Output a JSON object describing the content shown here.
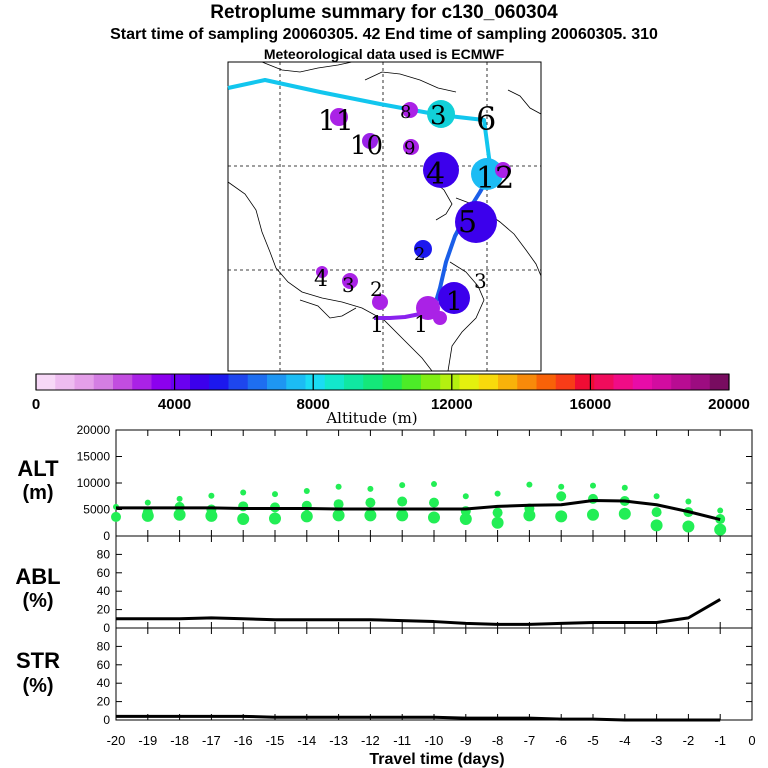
{
  "header": {
    "title": "Retroplume summary for c130_060304",
    "subtitle": "Start time of sampling 20060305.   42     End time of sampling 20060305.   310",
    "met_line": "Meteorological data used is ECMWF"
  },
  "colors": {
    "colorbar": [
      "#f7d8f7",
      "#eebcf0",
      "#e49fe9",
      "#d47ee3",
      "#c24de0",
      "#aa22e6",
      "#8c00ee",
      "#6a00f0",
      "#3c00ec",
      "#1c18ee",
      "#1e46ee",
      "#1e6ef0",
      "#1e96f2",
      "#1cbcf4",
      "#1adcf4",
      "#12e8cc",
      "#10e8a2",
      "#14e87a",
      "#22ea50",
      "#4cec28",
      "#80ee14",
      "#b4f010",
      "#e4f00e",
      "#f8da0c",
      "#f8b20a",
      "#f88a0a",
      "#f86208",
      "#f83c18",
      "#f00c34",
      "#f00c5c",
      "#f00c86",
      "#e80ca8",
      "#d20ca0",
      "#b80c92",
      "#9c0c80",
      "#780c60"
    ],
    "alt_dots": "#22ee55",
    "line": "#000000"
  },
  "map": {
    "tracks": [
      {
        "name": "track-cyan",
        "color": "#12c6ee"
      },
      {
        "name": "track-blue",
        "color": "#1a5ee8"
      },
      {
        "name": "track-purple",
        "color": "#8a22ee"
      }
    ],
    "day_labels": [
      "11",
      "10",
      "9",
      "8",
      "3",
      "4",
      "6",
      "12",
      "5",
      "2",
      "4",
      "3",
      "3",
      "2",
      "1",
      "1",
      "1"
    ],
    "markers": [
      {
        "color": "#aa22e6"
      },
      {
        "color": "#9a22e8"
      },
      {
        "color": "#aa22e6"
      },
      {
        "color": "#aa22e6"
      },
      {
        "color": "#12d0d8"
      },
      {
        "color": "#3c00ec"
      },
      {
        "color": "#1cbcf4"
      },
      {
        "color": "#aa22e6"
      },
      {
        "color": "#3c00ec"
      },
      {
        "color": "#1c18ee"
      },
      {
        "color": "#aa22e6"
      },
      {
        "color": "#aa22e6"
      },
      {
        "color": "#aa22e6"
      },
      {
        "color": "#aa22e6"
      },
      {
        "color": "#3c00ec"
      },
      {
        "color": "#aa22e6"
      }
    ]
  },
  "colorbar_axis": {
    "ticks": [
      "0",
      "4000",
      "8000",
      "12000",
      "16000",
      "20000"
    ],
    "label": "Altitude (m)"
  },
  "chart_data": [
    {
      "type": "line",
      "title": "ALT (m)",
      "ylabel_1": "ALT",
      "ylabel_2": "(m)",
      "ylim": [
        0,
        20000
      ],
      "yticks": [
        "0",
        "5000",
        "10000",
        "15000",
        "20000"
      ],
      "x": [
        -20,
        -19,
        -18,
        -17,
        -16,
        -15,
        -14,
        -13,
        -12,
        -11,
        -10,
        -9,
        -8,
        -7,
        -6,
        -5,
        -4,
        -3,
        -2,
        -1
      ],
      "values": [
        5300,
        5300,
        5300,
        5300,
        5200,
        5200,
        5200,
        5100,
        5100,
        5100,
        5100,
        5100,
        5600,
        5800,
        5900,
        6700,
        6600,
        5900,
        4600,
        3100
      ],
      "dots": [
        {
          "x": -20,
          "alts": [
            5500,
            3600
          ]
        },
        {
          "x": -19,
          "alts": [
            6300,
            4500,
            3800
          ]
        },
        {
          "x": -18,
          "alts": [
            7000,
            5500,
            4000
          ]
        },
        {
          "x": -17,
          "alts": [
            7600,
            5000,
            3800
          ]
        },
        {
          "x": -16,
          "alts": [
            8200,
            5600,
            3200
          ]
        },
        {
          "x": -15,
          "alts": [
            7900,
            5400,
            3300
          ]
        },
        {
          "x": -14,
          "alts": [
            8500,
            5700,
            3700
          ]
        },
        {
          "x": -13,
          "alts": [
            9300,
            6000,
            3900
          ]
        },
        {
          "x": -12,
          "alts": [
            8900,
            6300,
            3900
          ]
        },
        {
          "x": -11,
          "alts": [
            9600,
            6500,
            3900
          ]
        },
        {
          "x": -10,
          "alts": [
            9800,
            6300,
            3500
          ]
        },
        {
          "x": -9,
          "alts": [
            7500,
            4700,
            3200
          ]
        },
        {
          "x": -8,
          "alts": [
            8000,
            4400,
            2500
          ]
        },
        {
          "x": -7,
          "alts": [
            9700,
            5200,
            3900
          ]
        },
        {
          "x": -6,
          "alts": [
            9300,
            7500,
            3700
          ]
        },
        {
          "x": -5,
          "alts": [
            9500,
            7000,
            4000
          ]
        },
        {
          "x": -4,
          "alts": [
            9100,
            6600,
            4200
          ]
        },
        {
          "x": -3,
          "alts": [
            7500,
            4500,
            2000
          ]
        },
        {
          "x": -2,
          "alts": [
            6500,
            4500,
            1800
          ]
        },
        {
          "x": -1,
          "alts": [
            4800,
            3200,
            1200
          ]
        }
      ]
    },
    {
      "type": "line",
      "title": "ABL (%)",
      "ylabel_1": "ABL",
      "ylabel_2": "(%)",
      "ylim": [
        0,
        100
      ],
      "yticks": [
        "0",
        "20",
        "40",
        "60",
        "80"
      ],
      "x": [
        -20,
        -19,
        -18,
        -17,
        -16,
        -15,
        -14,
        -13,
        -12,
        -11,
        -10,
        -9,
        -8,
        -7,
        -6,
        -5,
        -4,
        -3,
        -2,
        -1
      ],
      "values": [
        10,
        10,
        10,
        11,
        10,
        9,
        9,
        9,
        9,
        8,
        7,
        5,
        4,
        4,
        5,
        6,
        6,
        6,
        11,
        31
      ]
    },
    {
      "type": "line",
      "title": "STR (%)",
      "ylabel_1": "STR",
      "ylabel_2": "(%)",
      "ylim": [
        0,
        100
      ],
      "yticks": [
        "0",
        "20",
        "40",
        "60",
        "80"
      ],
      "x": [
        -20,
        -19,
        -18,
        -17,
        -16,
        -15,
        -14,
        -13,
        -12,
        -11,
        -10,
        -9,
        -8,
        -7,
        -6,
        -5,
        -4,
        -3,
        -2,
        -1
      ],
      "values": [
        4,
        4,
        4,
        4,
        4,
        3,
        3,
        3,
        3,
        3,
        3,
        2,
        2,
        2,
        1,
        1,
        0,
        0,
        0,
        0
      ],
      "xlabel": "Travel time (days)",
      "xticks": [
        "-20",
        "-19",
        "-18",
        "-17",
        "-16",
        "-15",
        "-14",
        "-13",
        "-12",
        "-11",
        "-10",
        "-9",
        "-8",
        "-7",
        "-6",
        "-5",
        "-4",
        "-3",
        "-2",
        "-1",
        "0"
      ]
    }
  ]
}
